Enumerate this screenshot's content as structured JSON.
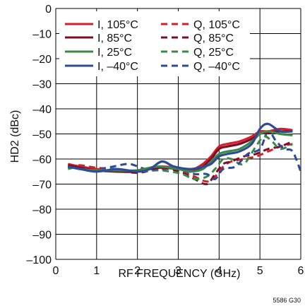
{
  "chart_data": {
    "type": "line",
    "xlabel": "RF FREQUENCY (GHz)",
    "ylabel": "HD2 (dBc)",
    "xlim": [
      0,
      6
    ],
    "ylim": [
      -100,
      0
    ],
    "x_ticks": [
      "0",
      "1",
      "2",
      "3",
      "4",
      "5",
      "6"
    ],
    "y_ticks": [
      "0",
      "–10",
      "–20",
      "–30",
      "–40",
      "–50",
      "–60",
      "–70",
      "–80",
      "–90",
      "–100"
    ],
    "grid": true,
    "legend_position": "top-left",
    "figure_id": "5586 G30",
    "series": [
      {
        "name": "I, 105°C",
        "color": "#d81e2c",
        "dash": false,
        "x": [
          0.3,
          0.6,
          1.0,
          1.5,
          2.0,
          2.5,
          3.0,
          3.3,
          3.6,
          3.8,
          4.0,
          4.2,
          4.5,
          4.8,
          5.0,
          5.2,
          5.5,
          5.8
        ],
        "y": [
          -62,
          -63,
          -64,
          -65,
          -64.5,
          -63,
          -63.5,
          -64.5,
          -62,
          -59,
          -55,
          -54,
          -53,
          -51,
          -49,
          -49,
          -48,
          -48.5
        ]
      },
      {
        "name": "I, 85°C",
        "color": "#7b0e26",
        "dash": false,
        "x": [
          0.3,
          0.6,
          1.0,
          1.5,
          2.0,
          2.5,
          3.0,
          3.3,
          3.6,
          3.8,
          4.0,
          4.2,
          4.5,
          4.8,
          5.0,
          5.2,
          5.5,
          5.8
        ],
        "y": [
          -62.5,
          -63.5,
          -64.5,
          -65,
          -65,
          -63.5,
          -64,
          -65,
          -63,
          -60,
          -56,
          -55,
          -54,
          -52,
          -50,
          -49.5,
          -49,
          -49
        ]
      },
      {
        "name": "I, 25°C",
        "color": "#3a8a47",
        "dash": false,
        "x": [
          0.3,
          0.6,
          1.0,
          1.5,
          2.0,
          2.5,
          3.0,
          3.3,
          3.6,
          3.8,
          4.0,
          4.2,
          4.5,
          4.8,
          5.0,
          5.2,
          5.5,
          5.8
        ],
        "y": [
          -63,
          -64,
          -64.5,
          -64.5,
          -64.5,
          -63,
          -64,
          -65,
          -64,
          -61,
          -58,
          -57,
          -56,
          -53,
          -50,
          -49,
          -50,
          -50.5
        ]
      },
      {
        "name": "I, –40°C",
        "color": "#2e4a9a",
        "dash": false,
        "x": [
          0.3,
          0.6,
          1.0,
          1.5,
          2.0,
          2.3,
          2.6,
          2.9,
          3.3,
          3.6,
          3.8,
          4.0,
          4.2,
          4.5,
          4.8,
          5.0,
          5.2,
          5.5,
          5.8
        ],
        "y": [
          -63,
          -64,
          -65,
          -64,
          -65,
          -64,
          -61,
          -63,
          -64,
          -63,
          -62,
          -59,
          -58,
          -57,
          -54,
          -48,
          -46,
          -49,
          -49
        ]
      },
      {
        "name": "Q, 105°C",
        "color": "#d81e2c",
        "dash": true,
        "x": [
          0.3,
          0.6,
          1.0,
          1.5,
          2.0,
          2.5,
          2.8,
          3.1,
          3.4,
          3.7,
          3.9,
          4.1,
          4.3,
          4.6,
          4.9,
          5.2,
          5.5,
          5.8
        ],
        "y": [
          -63,
          -62.5,
          -63.5,
          -64,
          -65,
          -64,
          -63.5,
          -65,
          -67,
          -69,
          -67,
          -63,
          -61,
          -60,
          -59,
          -57,
          -55,
          -54
        ]
      },
      {
        "name": "Q, 85°C",
        "color": "#7b0e26",
        "dash": true,
        "x": [
          0.3,
          0.6,
          1.0,
          1.5,
          2.0,
          2.5,
          2.8,
          3.1,
          3.4,
          3.7,
          3.9,
          4.1,
          4.3,
          4.6,
          4.9,
          5.2,
          5.5,
          5.8
        ],
        "y": [
          -63.5,
          -63,
          -64,
          -64.5,
          -65.5,
          -64,
          -64,
          -65.5,
          -68,
          -70,
          -66,
          -62,
          -61,
          -59,
          -58,
          -56,
          -55,
          -53
        ]
      },
      {
        "name": "Q, 25°C",
        "color": "#3a8a47",
        "dash": true,
        "x": [
          0.3,
          0.6,
          1.0,
          1.5,
          2.0,
          2.5,
          2.8,
          3.1,
          3.4,
          3.7,
          3.9,
          4.1,
          4.3,
          4.6,
          4.9,
          5.1,
          5.3,
          5.5,
          5.8
        ],
        "y": [
          -64,
          -63,
          -64,
          -64,
          -65,
          -64.5,
          -65,
          -66,
          -68,
          -67,
          -64,
          -60,
          -60,
          -62,
          -55,
          -51,
          -53,
          -56,
          -54
        ]
      },
      {
        "name": "Q, –40°C",
        "color": "#2e4a9a",
        "dash": true,
        "x": [
          0.3,
          0.6,
          1.0,
          1.4,
          1.8,
          2.2,
          2.6,
          3.0,
          3.4,
          3.7,
          3.9,
          4.1,
          4.4,
          4.7,
          5.0,
          5.2,
          5.4,
          5.6,
          5.8,
          6.0
        ],
        "y": [
          -63,
          -63,
          -64,
          -63,
          -62,
          -64,
          -64,
          -64,
          -66,
          -66,
          -68,
          -64,
          -63,
          -58,
          -56,
          -49,
          -53,
          -56,
          -57,
          -65
        ]
      }
    ]
  }
}
